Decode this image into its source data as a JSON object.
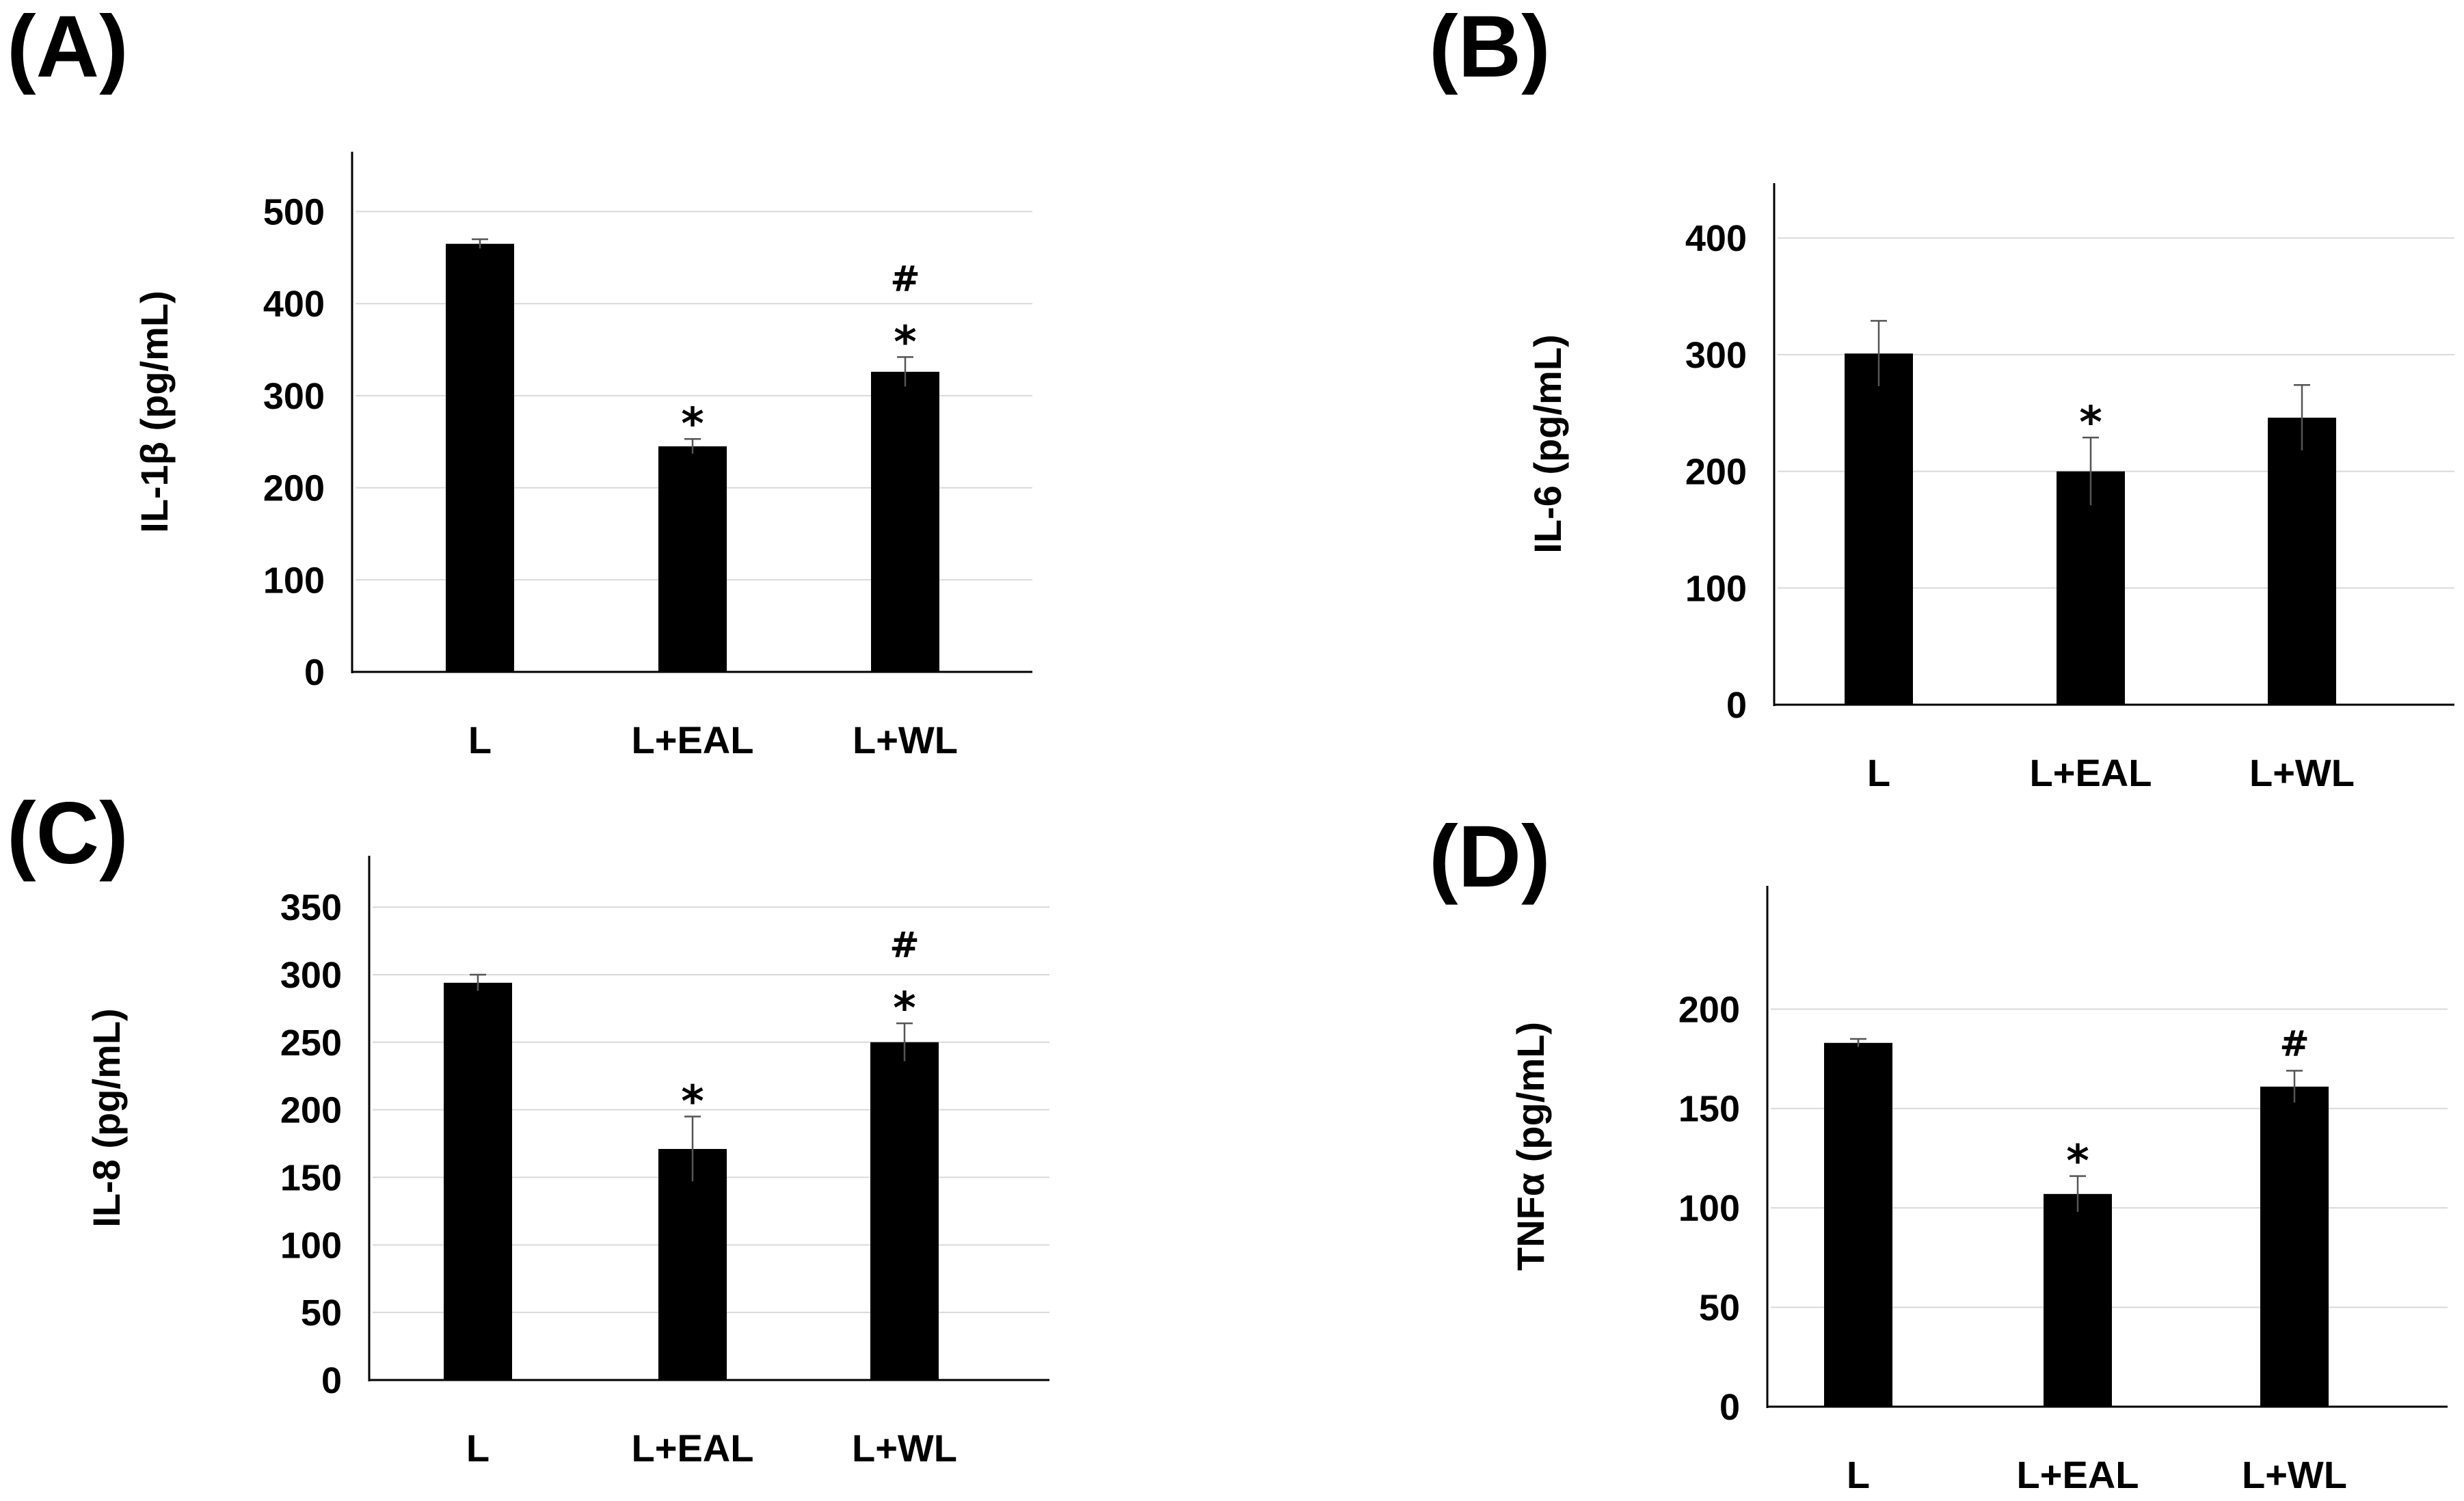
{
  "chart_data": [
    {
      "panel": "(A)",
      "type": "bar",
      "categories": [
        "L",
        "L+EAL",
        "L+WL"
      ],
      "values": [
        465,
        245,
        326
      ],
      "errors": [
        5,
        8,
        16
      ],
      "annotations": [
        [],
        [
          "*"
        ],
        [
          "*",
          "#"
        ]
      ],
      "ylabel": "IL-1β (pg/mL)",
      "yticks": [
        0,
        100,
        200,
        300,
        400,
        500
      ],
      "ylim": [
        0,
        565
      ],
      "grid": true,
      "bar_color": "#000000"
    },
    {
      "panel": "(B)",
      "type": "bar",
      "categories": [
        "L",
        "L+WL",
        "L+EAL"
      ],
      "values": [
        301,
        246,
        200
      ],
      "errors": [
        28,
        28,
        29
      ],
      "annotations": [
        [],
        [],
        [
          "*"
        ]
      ],
      "ylabel": "IL-6 (pg/mL)",
      "yticks": [
        0,
        100,
        200,
        300,
        400
      ],
      "ylim": [
        0,
        447
      ],
      "grid": true,
      "bar_color": "#000000"
    },
    {
      "panel": "(C)",
      "type": "bar",
      "categories": [
        "L",
        "L+EAL",
        "L+WL"
      ],
      "values": [
        294,
        171,
        250
      ],
      "errors": [
        6,
        24,
        14
      ],
      "annotations": [
        [],
        [
          "*"
        ],
        [
          "*",
          "#"
        ]
      ],
      "ylabel": "IL-8 (pg/mL)",
      "yticks": [
        0,
        50,
        100,
        150,
        200,
        250,
        300,
        350
      ],
      "ylim": [
        0,
        388
      ],
      "grid": true,
      "bar_color": "#000000"
    },
    {
      "panel": "(D)",
      "type": "bar",
      "categories": [
        "L",
        "L+EAL",
        "L+WL"
      ],
      "values": [
        183,
        107,
        161
      ],
      "errors": [
        2,
        9,
        8
      ],
      "annotations": [
        [],
        [
          "*"
        ],
        [
          "#"
        ]
      ],
      "ylabel": "TNFα (pg/mL)",
      "yticks": [
        0,
        50,
        100,
        150,
        200
      ],
      "ylim": [
        0,
        262
      ],
      "grid": true,
      "bar_color": "#000000"
    }
  ]
}
